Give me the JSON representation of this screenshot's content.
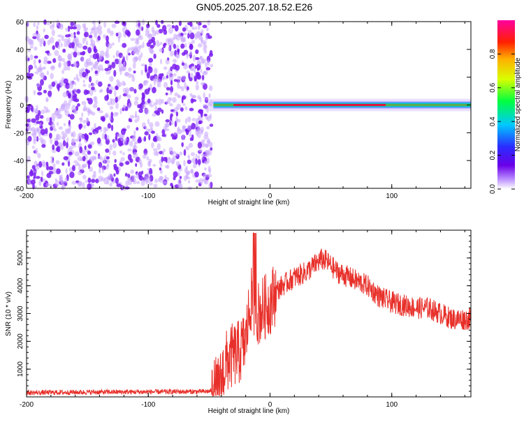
{
  "figure_title": "GN05.2025.207.18.52.E26",
  "colors": {
    "snr_line": "#e8302a",
    "speckle": "#7a1cf0",
    "speckle_light": "#c9a6ff"
  },
  "colorbar": {
    "label": "Normalized spectral amplitude",
    "ticks": [
      "0.0",
      "0.2",
      "0.4",
      "0.6",
      "0.8"
    ],
    "tick_values": [
      0.0,
      0.2,
      0.4,
      0.6,
      0.8
    ],
    "range": [
      0,
      1
    ],
    "colormap": "rainbow"
  },
  "chart_data": [
    {
      "type": "heatmap",
      "title": "",
      "xlabel": "Height of straight line (km)",
      "ylabel": "Frequency (Hz)",
      "xlim": [
        -200,
        165
      ],
      "ylim": [
        -60,
        60
      ],
      "x_ticks": [
        -200,
        -100,
        0,
        100
      ],
      "x_tick_labels": [
        "-200",
        "-100",
        "0",
        "100"
      ],
      "y_ticks": [
        -60,
        -40,
        -20,
        0,
        20,
        40,
        60
      ],
      "y_tick_labels": [
        "-60",
        "-40",
        "-20",
        "0",
        "20",
        "40",
        "60"
      ],
      "noise_region_x": [
        -200,
        -48
      ],
      "signal_band": {
        "x_start": -50,
        "x_end": 165,
        "center_frequency_hz": 0,
        "peak_amplitude": 1.0
      }
    },
    {
      "type": "line",
      "title": "",
      "xlabel": "Height of straight line (km)",
      "ylabel": "SNR (10 * v/v)",
      "xlim": [
        -200,
        165
      ],
      "ylim": [
        0,
        6000
      ],
      "x_ticks": [
        -200,
        -100,
        0,
        100
      ],
      "x_tick_labels": [
        "-200",
        "-100",
        "0",
        "100"
      ],
      "y_ticks": [
        1000,
        2000,
        3000,
        4000,
        5000
      ],
      "y_tick_labels": [
        "1000",
        "2000",
        "3000",
        "4000",
        "5000"
      ],
      "series": [
        {
          "x": [
            -200,
            -150,
            -100,
            -60,
            -50,
            -42,
            -38,
            -35,
            -30,
            -25,
            -20,
            -16,
            -12,
            -10,
            -5,
            0,
            5,
            10,
            20,
            30,
            38,
            42,
            46,
            55,
            65,
            80,
            90,
            100,
            110,
            120,
            130,
            140,
            150,
            165
          ],
          "y": [
            150,
            170,
            180,
            190,
            200,
            300,
            1000,
            1300,
            1500,
            1600,
            2000,
            3500,
            3200,
            3000,
            3200,
            3400,
            3800,
            4000,
            4300,
            4500,
            4800,
            4950,
            4900,
            4500,
            4300,
            4000,
            3600,
            3400,
            3300,
            3200,
            3200,
            3000,
            2800,
            2800
          ]
        }
      ]
    }
  ]
}
